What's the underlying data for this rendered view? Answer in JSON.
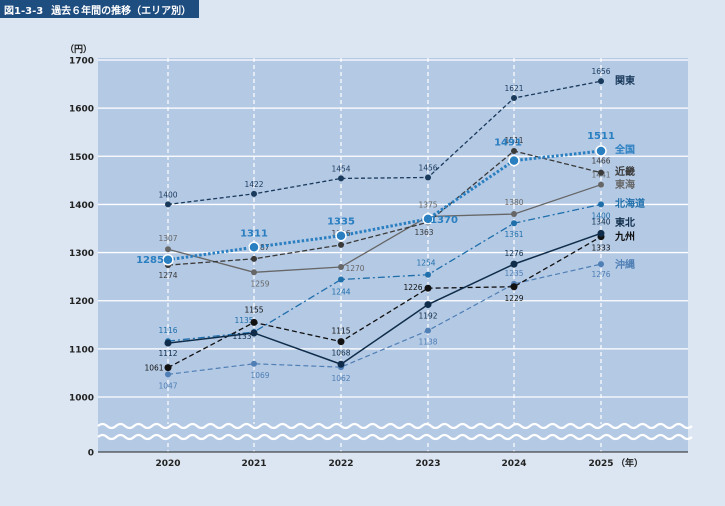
{
  "figure": {
    "number": "図1-3-3",
    "title": "過去６年間の推移（エリア別）"
  },
  "chart_data": {
    "type": "line",
    "title": "過去６年間の推移（エリア別）",
    "ylabel": "（円）",
    "xlabel_unit": "（年）",
    "x": [
      "2020",
      "2021",
      "2022",
      "2023",
      "2024",
      "2025"
    ],
    "yticks": [
      "0",
      "1000",
      "1100",
      "1200",
      "1300",
      "1400",
      "1500",
      "1600",
      "1700"
    ],
    "ylim_upper": [
      1000,
      1700
    ],
    "axis_break": true,
    "series": [
      {
        "name": "関東",
        "values": [
          1400,
          1422,
          1454,
          1456,
          1621,
          1656
        ],
        "labels": [
          "1400",
          "1422",
          "1454",
          "1456",
          "1621",
          "1656"
        ],
        "color": "#1a3a5c"
      },
      {
        "name": "全国",
        "values": [
          1285,
          1311,
          1335,
          1370,
          1491,
          1511
        ],
        "labels": [
          "1285",
          "1311",
          "1335",
          "1370",
          "1491",
          "1511"
        ],
        "color": "#2a7fc1"
      },
      {
        "name": "近畿",
        "values": [
          1274,
          1287,
          1316,
          1363,
          1511,
          1466
        ],
        "labels": [
          "1274",
          "1287",
          "1316",
          "1363",
          "1511",
          "1466"
        ],
        "color": "#3a3a3a"
      },
      {
        "name": "東海",
        "values": [
          1307,
          1259,
          1270,
          1375,
          1380,
          1441
        ],
        "labels": [
          "1307",
          "1259",
          "1270",
          "1375",
          "1380",
          "1441"
        ],
        "color": "#666666"
      },
      {
        "name": "北海道",
        "values": [
          1116,
          1135,
          1244,
          1254,
          1361,
          1400
        ],
        "labels": [
          "1116",
          "1135",
          "1244",
          "1254",
          "1361",
          "1400"
        ],
        "color": "#1f6fab"
      },
      {
        "name": "東北",
        "values": [
          1112,
          1133,
          1068,
          1192,
          1276,
          1340
        ],
        "labels": [
          "1112",
          "1133",
          "1068",
          "1192",
          "1276",
          "1340"
        ],
        "color": "#0f2d4a"
      },
      {
        "name": "九州",
        "values": [
          1061,
          1155,
          1115,
          1226,
          1229,
          1333
        ],
        "labels": [
          "1061",
          "1155",
          "1115",
          "1226",
          "1229",
          "1333"
        ],
        "color": "#111111"
      },
      {
        "name": "沖縄",
        "values": [
          1047,
          1069,
          1062,
          1138,
          1235,
          1276
        ],
        "labels": [
          "1047",
          "1069",
          "1062",
          "1138",
          "1235",
          "1276"
        ],
        "color": "#4f7fb5"
      }
    ]
  }
}
